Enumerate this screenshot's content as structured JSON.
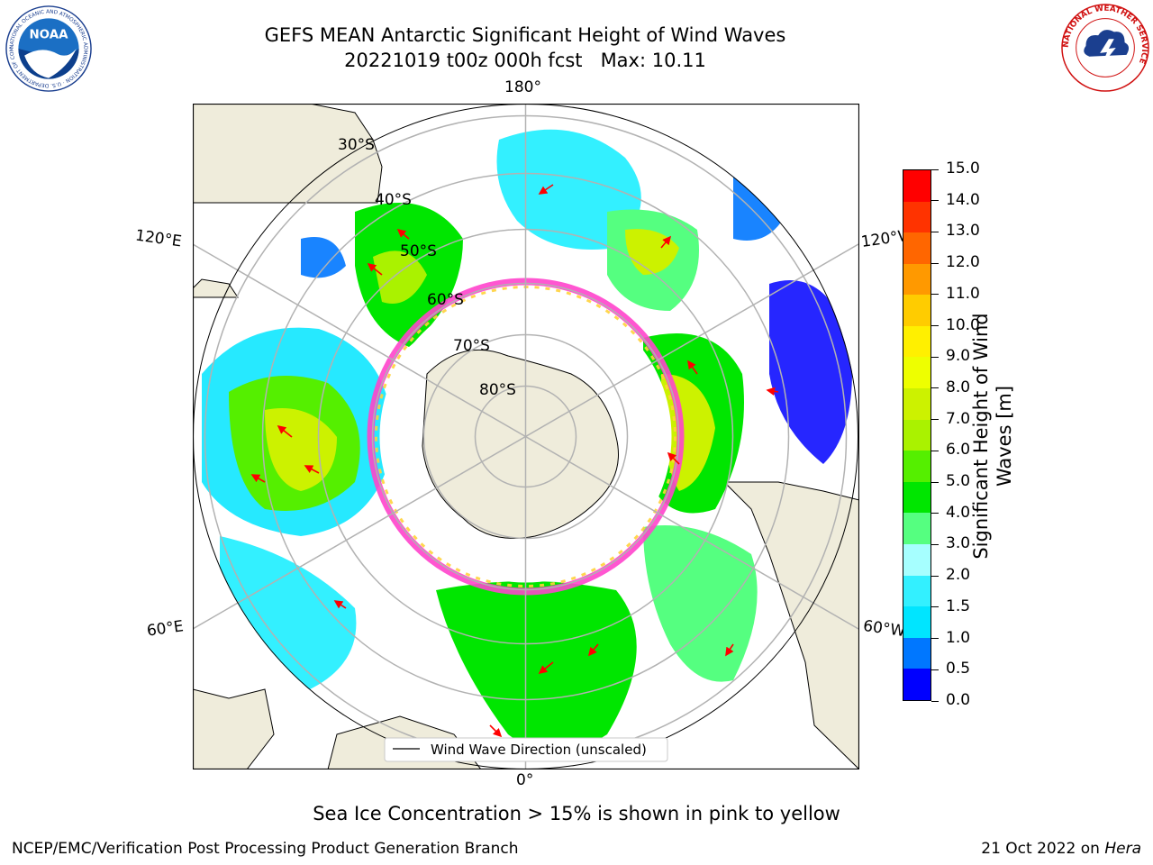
{
  "header": {
    "title_line1": "GEFS MEAN Antarctic Significant Height of Wind Waves",
    "title_line2": "20221019 t00z 000h fcst   Max: 10.11",
    "logo_left_text": "NOAA",
    "logo_left_ring_text": "NATIONAL OCEANIC AND ATMOSPHERIC ADMINISTRATION · U.S. DEPARTMENT OF COMMERCE",
    "logo_right_ring_text": "NATIONAL WEATHER SERVICE"
  },
  "map": {
    "projection": "south-polar-stereographic",
    "longitude_labels": {
      "top": "180°",
      "left": "120°E",
      "right": "120°W",
      "bottom_left": "60°E",
      "bottom_right": "60°W",
      "bottom": "0°"
    },
    "latitude_labels": [
      "30°S",
      "40°S",
      "50°S",
      "60°S",
      "70°S",
      "80°S"
    ],
    "legend_label": "Wind Wave Direction (unscaled)",
    "colors": {
      "land": "#efecdb",
      "ocean": "#ffffff",
      "grid": "#b2b2b2",
      "arrow": "#ff0000",
      "ice_pink": "#ff44cc",
      "ice_yellow": "#ffd23c"
    }
  },
  "colorbar": {
    "label": "Significant Height of Wind Waves [m]",
    "ticks": [
      "0.0",
      "0.5",
      "1.0",
      "1.5",
      "2.0",
      "3.0",
      "4.0",
      "5.0",
      "6.0",
      "7.0",
      "8.0",
      "9.0",
      "10.0",
      "11.0",
      "12.0",
      "13.0",
      "14.0",
      "15.0"
    ],
    "colors": [
      "#0000ff",
      "#0077ff",
      "#00e5ff",
      "#33f0ff",
      "#a6ffff",
      "#55ff80",
      "#00e600",
      "#55ef00",
      "#aaf200",
      "#ccf200",
      "#eeff00",
      "#fff000",
      "#ffcc00",
      "#ff9900",
      "#ff6600",
      "#ff3300",
      "#ff0000"
    ]
  },
  "chart_data": {
    "type": "heatmap",
    "title": "GEFS MEAN Antarctic Significant Height of Wind Waves",
    "subtitle": "20221019 t00z 000h fcst   Max: 10.11",
    "colorbar_label": "Significant Height of Wind Waves [m]",
    "colorbar_range": [
      0.0,
      15.0
    ],
    "max_value": 10.11,
    "levels": [
      0.0,
      0.5,
      1.0,
      1.5,
      2.0,
      3.0,
      4.0,
      5.0,
      6.0,
      7.0,
      8.0,
      9.0,
      10.0,
      11.0,
      12.0,
      13.0,
      14.0,
      15.0
    ]
  },
  "footer": {
    "sea_ice_note": "Sea Ice Concentration > 15% is shown in pink to yellow",
    "left": "NCEP/EMC/Verification Post Processing Product Generation Branch",
    "right_date": "21 Oct 2022 on ",
    "right_host": "Hera"
  }
}
